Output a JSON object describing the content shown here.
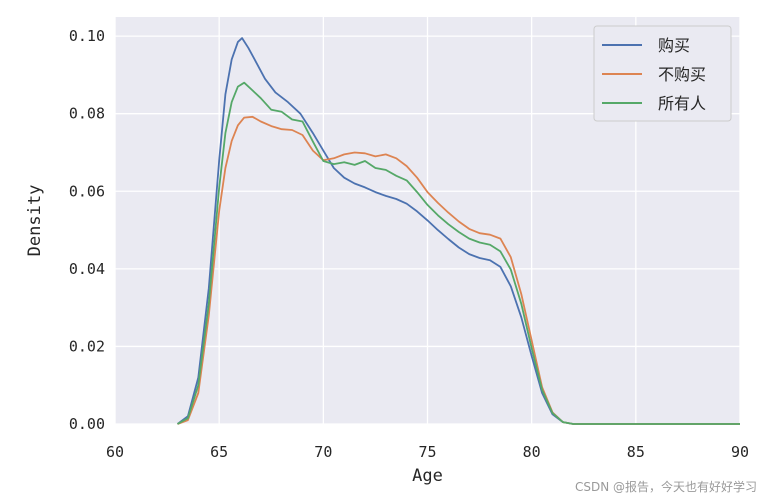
{
  "chart_data": {
    "type": "line",
    "xlabel": "Age",
    "ylabel": "Density",
    "xlim": [
      60,
      90
    ],
    "ylim": [
      0,
      0.1
    ],
    "xticks": [
      60,
      65,
      70,
      75,
      80,
      85,
      90
    ],
    "yticks": [
      0.0,
      0.02,
      0.04,
      0.06,
      0.08,
      0.1
    ],
    "ytick_labels": [
      "0.00",
      "0.02",
      "0.04",
      "0.06",
      "0.08",
      "0.10"
    ],
    "grid": true,
    "background": "#eaeaf2",
    "legend_position": "top-right",
    "series": [
      {
        "name": "购买",
        "color": "#4c72b0",
        "x": [
          63.0,
          63.5,
          64.0,
          64.5,
          65.0,
          65.3,
          65.6,
          65.9,
          66.1,
          66.4,
          66.8,
          67.2,
          67.7,
          68.3,
          68.9,
          69.5,
          70.0,
          70.5,
          71.0,
          71.5,
          72.0,
          72.5,
          73.0,
          73.5,
          74.0,
          74.5,
          75.0,
          75.5,
          76.0,
          76.5,
          77.0,
          77.5,
          78.0,
          78.5,
          79.0,
          79.5,
          80.0,
          80.5,
          81.0,
          81.5,
          82.0,
          85.0,
          90.0
        ],
        "y": [
          0.0,
          0.002,
          0.012,
          0.035,
          0.068,
          0.085,
          0.094,
          0.0985,
          0.0995,
          0.097,
          0.093,
          0.089,
          0.0855,
          0.083,
          0.08,
          0.075,
          0.0705,
          0.066,
          0.0635,
          0.062,
          0.061,
          0.0598,
          0.0588,
          0.058,
          0.0568,
          0.0548,
          0.0525,
          0.05,
          0.0477,
          0.0455,
          0.0438,
          0.0428,
          0.0422,
          0.0405,
          0.0355,
          0.0275,
          0.0175,
          0.008,
          0.0025,
          0.0005,
          0.0,
          0.0,
          0.0
        ]
      },
      {
        "name": "不购买",
        "color": "#dd8452",
        "x": [
          63.0,
          63.5,
          64.0,
          64.5,
          65.0,
          65.3,
          65.6,
          65.9,
          66.2,
          66.6,
          67.0,
          67.5,
          68.0,
          68.5,
          69.0,
          69.5,
          70.0,
          70.5,
          71.0,
          71.5,
          72.0,
          72.5,
          73.0,
          73.5,
          74.0,
          74.5,
          75.0,
          75.5,
          76.0,
          76.5,
          77.0,
          77.5,
          78.0,
          78.5,
          79.0,
          79.5,
          80.0,
          80.5,
          81.0,
          81.5,
          82.0,
          85.0,
          90.0
        ],
        "y": [
          0.0,
          0.001,
          0.008,
          0.028,
          0.055,
          0.066,
          0.073,
          0.077,
          0.079,
          0.0792,
          0.078,
          0.0768,
          0.076,
          0.0758,
          0.0745,
          0.0705,
          0.068,
          0.0685,
          0.0695,
          0.07,
          0.0698,
          0.069,
          0.0695,
          0.0685,
          0.0665,
          0.0635,
          0.0598,
          0.057,
          0.0545,
          0.0522,
          0.0503,
          0.0492,
          0.0488,
          0.0478,
          0.043,
          0.0335,
          0.0215,
          0.0095,
          0.003,
          0.0005,
          0.0,
          0.0,
          0.0
        ]
      },
      {
        "name": "所有人",
        "color": "#55a868",
        "x": [
          63.0,
          63.5,
          64.0,
          64.5,
          65.0,
          65.3,
          65.6,
          65.9,
          66.2,
          66.6,
          67.0,
          67.5,
          68.0,
          68.5,
          69.0,
          69.5,
          70.0,
          70.5,
          71.0,
          71.5,
          72.0,
          72.5,
          73.0,
          73.5,
          74.0,
          74.5,
          75.0,
          75.5,
          76.0,
          76.5,
          77.0,
          77.5,
          78.0,
          78.5,
          79.0,
          79.5,
          80.0,
          80.5,
          81.0,
          81.5,
          82.0,
          85.0,
          90.0
        ],
        "y": [
          0.0,
          0.0015,
          0.01,
          0.031,
          0.061,
          0.075,
          0.083,
          0.087,
          0.088,
          0.086,
          0.084,
          0.081,
          0.0805,
          0.0785,
          0.078,
          0.0728,
          0.0678,
          0.067,
          0.0675,
          0.0668,
          0.0678,
          0.066,
          0.0655,
          0.064,
          0.0628,
          0.0598,
          0.0565,
          0.0538,
          0.0515,
          0.0495,
          0.0478,
          0.0468,
          0.0462,
          0.0445,
          0.0398,
          0.031,
          0.0195,
          0.0088,
          0.0028,
          0.0005,
          0.0,
          0.0,
          0.0
        ]
      }
    ]
  },
  "watermark": "CSDN @报告，今天也有好好学习"
}
